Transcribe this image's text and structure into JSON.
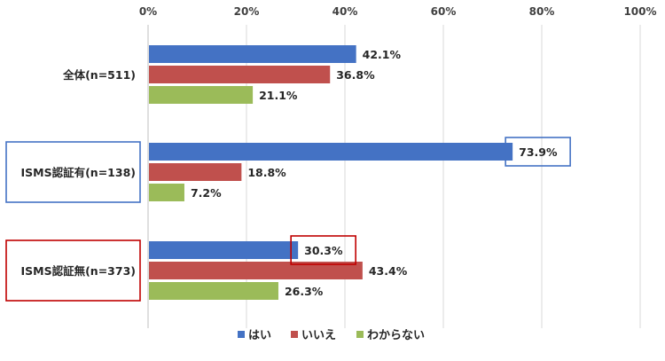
{
  "chart_data": {
    "type": "bar",
    "orientation": "horizontal",
    "xlim": [
      0,
      100
    ],
    "xticks": [
      "0%",
      "20%",
      "40%",
      "60%",
      "80%",
      "100%"
    ],
    "xaxis_position": "top",
    "grid": true,
    "categories": [
      "全体(n=511)",
      "ISMS認証有(n=138)",
      "ISMS認証無(n=373)"
    ],
    "series": [
      {
        "name": "はい",
        "color": "#4472C4",
        "values": [
          42.1,
          73.9,
          30.3
        ],
        "labels": [
          "42.1%",
          "73.9%",
          "30.3%"
        ]
      },
      {
        "name": "いいえ",
        "color": "#C0504D",
        "values": [
          36.8,
          18.8,
          43.4
        ],
        "labels": [
          "36.8%",
          "18.8%",
          "43.4%"
        ]
      },
      {
        "name": "わからない",
        "color": "#9BBB59",
        "values": [
          21.1,
          7.2,
          26.3
        ],
        "labels": [
          "21.1%",
          "7.2%",
          "26.3%"
        ]
      }
    ],
    "legend_position": "bottom",
    "highlights": [
      {
        "category_index": 1,
        "series_index": 0,
        "color": "#4472C4"
      },
      {
        "category_index": 2,
        "series_index": 0,
        "color": "#C00000"
      }
    ],
    "category_box_colors": [
      null,
      "#4472C4",
      "#C00000"
    ]
  }
}
